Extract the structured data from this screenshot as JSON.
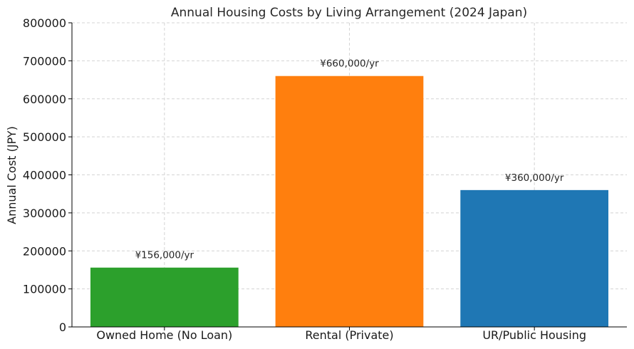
{
  "chart_data": {
    "type": "bar",
    "title": "Annual Housing Costs by Living Arrangement (2024 Japan)",
    "xlabel": "",
    "ylabel": "Annual Cost (JPY)",
    "ylim": [
      0,
      800000
    ],
    "yticks": [
      "0",
      "100000",
      "200000",
      "300000",
      "400000",
      "500000",
      "600000",
      "700000",
      "800000"
    ],
    "ytick_values": [
      0,
      100000,
      200000,
      300000,
      400000,
      500000,
      600000,
      700000,
      800000
    ],
    "categories": [
      "Owned Home (No Loan)",
      "Rental (Private)",
      "UR/Public Housing"
    ],
    "values": [
      156000,
      660000,
      360000
    ],
    "data_labels": [
      "¥156,000/yr",
      "¥660,000/yr",
      "¥360,000/yr"
    ],
    "colors": [
      "#2ca02c",
      "#ff7f0e",
      "#1f77b4"
    ],
    "grid": true,
    "legend": "none"
  }
}
